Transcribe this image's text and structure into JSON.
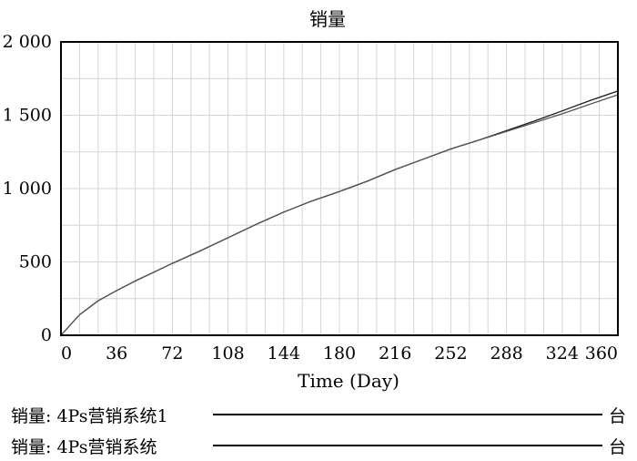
{
  "chart_data": {
    "type": "line",
    "title": "销量",
    "xlabel": "Time (Day)",
    "ylabel": "",
    "xlim": [
      0,
      360
    ],
    "ylim": [
      0,
      2000
    ],
    "x_ticks": [
      0,
      36,
      72,
      108,
      144,
      180,
      216,
      252,
      288,
      324,
      360
    ],
    "y_ticks": [
      0,
      500,
      1000,
      1500,
      2000
    ],
    "y_tick_labels": [
      "0",
      "500",
      "1 000",
      "1 500",
      "2 000"
    ],
    "grid": true,
    "x": [
      0,
      12,
      24,
      36,
      48,
      60,
      72,
      90,
      108,
      126,
      144,
      162,
      180,
      198,
      216,
      234,
      252,
      270,
      288,
      306,
      324,
      342,
      360
    ],
    "series": [
      {
        "name": "销量: 4Ps营销系统1",
        "color": "#1a1a1a",
        "values": [
          0,
          140,
          235,
          305,
          370,
          430,
          490,
          575,
          665,
          755,
          840,
          915,
          980,
          1050,
          1130,
          1200,
          1270,
          1330,
          1395,
          1460,
          1530,
          1600,
          1665
        ]
      },
      {
        "name": "销量: 4Ps营销系统",
        "color": "#555555",
        "values": [
          0,
          140,
          235,
          305,
          370,
          430,
          490,
          575,
          665,
          755,
          840,
          915,
          980,
          1050,
          1130,
          1200,
          1270,
          1330,
          1390,
          1450,
          1510,
          1575,
          1640
        ]
      }
    ]
  },
  "legend": [
    {
      "label": "销量: 4Ps营销系统1",
      "unit": "台"
    },
    {
      "label": "销量: 4Ps营销系统",
      "unit": "台"
    }
  ]
}
